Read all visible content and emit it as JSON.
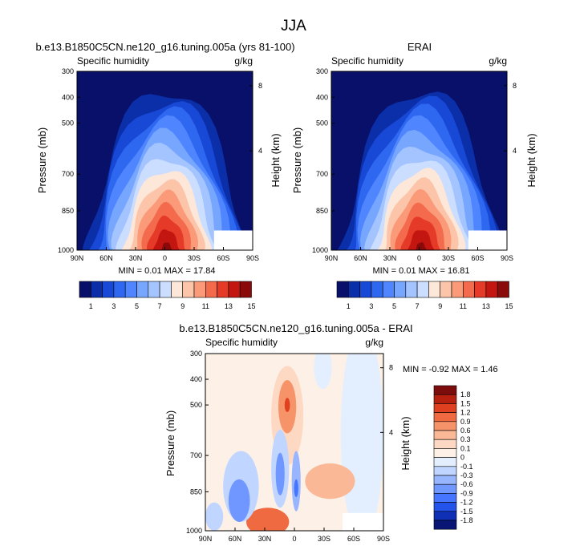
{
  "figure": {
    "title": "JJA"
  },
  "colors": {
    "abs_scale": [
      "#08106a",
      "#0b2fa8",
      "#1848d6",
      "#2f68f0",
      "#4f86ff",
      "#77a6ff",
      "#a3c4ff",
      "#ccdeff",
      "#fde7d9",
      "#fcc4a8",
      "#fa9a78",
      "#f46a4c",
      "#e53a27",
      "#c41610",
      "#8a0a0a"
    ],
    "diff_scale": [
      "#081575",
      "#0f2fb5",
      "#2353e8",
      "#4676ff",
      "#6f97ff",
      "#97b6ff",
      "#c0d5ff",
      "#e3eeff",
      "#fdf0e6",
      "#fdd8c2",
      "#fbb896",
      "#f69368",
      "#ef6a40",
      "#df4020",
      "#b5200f",
      "#7d0c0c"
    ]
  },
  "chart_data": [
    {
      "type": "heatmap",
      "title": "b.e13.B1850C5CN.ne120_g16.tuning.005a (yrs 81-100)",
      "left_label": "Specific humidity",
      "right_label": "g/kg",
      "xlabel": "",
      "ylabel": "Pressure (mb)",
      "y2label": "Height (km)",
      "x_ticks": [
        "90N",
        "60N",
        "30N",
        "0",
        "30S",
        "60S",
        "90S"
      ],
      "y_ticks": [
        "300",
        "400",
        "500",
        "700",
        "850",
        "1000"
      ],
      "y2_ticks": [
        "8",
        "4"
      ],
      "stats": "MIN =  0.01  MAX = 17.84",
      "min": 0.01,
      "max": 17.84,
      "colorbar_labels": [
        "1",
        "3",
        "5",
        "7",
        "9",
        "11",
        "13",
        "15"
      ]
    },
    {
      "type": "heatmap",
      "title": "ERAI",
      "left_label": "Specific humidity",
      "right_label": "g/kg",
      "xlabel": "",
      "ylabel": "Pressure (mb)",
      "y2label": "Height (km)",
      "x_ticks": [
        "90N",
        "60N",
        "30N",
        "0",
        "30S",
        "60S",
        "90S"
      ],
      "y_ticks": [
        "300",
        "400",
        "500",
        "700",
        "850",
        "1000"
      ],
      "y2_ticks": [
        "8",
        "4"
      ],
      "stats": "MIN =  0.01  MAX = 16.81",
      "min": 0.01,
      "max": 16.81,
      "colorbar_labels": [
        "1",
        "3",
        "5",
        "7",
        "9",
        "11",
        "13",
        "15"
      ]
    },
    {
      "type": "heatmap",
      "title": "b.e13.B1850C5CN.ne120_g16.tuning.005a - ERAI",
      "left_label": "Specific humidity",
      "right_label": "g/kg",
      "xlabel": "",
      "ylabel": "Pressure (mb)",
      "y2label": "Height (km)",
      "x_ticks": [
        "90N",
        "60N",
        "30N",
        "0",
        "30S",
        "60S",
        "90S"
      ],
      "y_ticks": [
        "300",
        "400",
        "500",
        "700",
        "850",
        "1000"
      ],
      "y2_ticks": [
        "8",
        "4"
      ],
      "stats": "MIN = -0.92  MAX =  1.46",
      "min": -0.92,
      "max": 1.46,
      "colorbar_labels": [
        "1.8",
        "1.5",
        "1.2",
        "0.9",
        "0.6",
        "0.3",
        "0.1",
        "0",
        "-0.1",
        "-0.3",
        "-0.6",
        "-0.9",
        "-1.2",
        "-1.5",
        "-1.8"
      ]
    }
  ]
}
